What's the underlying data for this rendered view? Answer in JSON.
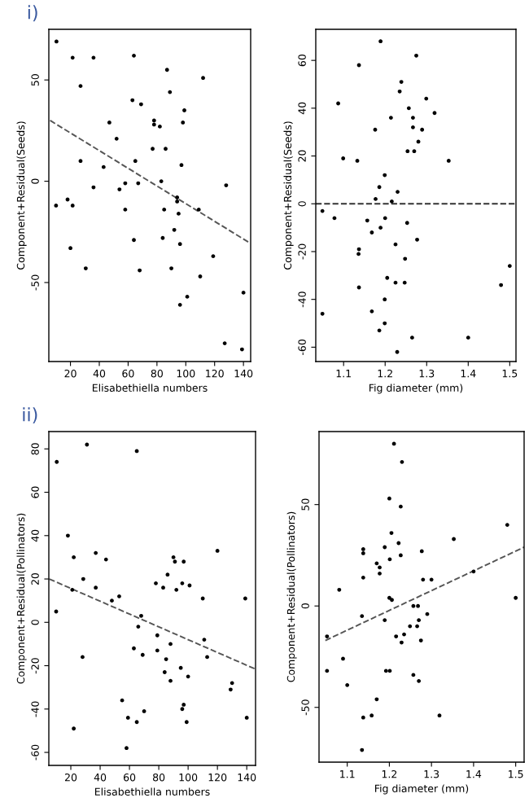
{
  "chart_data": [
    {
      "type": "scatter",
      "annotations": [
        "i)"
      ],
      "xlabel": "Elisabethiella numbers",
      "ylabel": "Component+Residual(Seeds)",
      "xlim": [
        5,
        145
      ],
      "ylim": [
        -89,
        75
      ],
      "xticks": [
        20,
        40,
        60,
        80,
        100,
        120,
        140
      ],
      "yticks": [
        -50,
        0,
        50
      ],
      "marker": "circle",
      "grid": false,
      "legend": false,
      "series": [
        {
          "color": "#000000",
          "x": [
            10.3,
            21.5,
            36,
            64,
            87,
            112,
            27,
            89,
            63,
            69,
            99,
            47,
            78,
            78,
            82,
            98,
            52,
            77,
            86,
            27,
            65,
            43,
            97,
            83,
            58,
            67,
            36,
            54,
            128,
            10,
            18,
            21.5,
            58,
            85,
            94,
            94,
            95,
            109,
            92,
            64,
            84,
            96,
            119,
            20,
            30.6,
            68,
            90,
            110,
            101,
            96,
            140,
            127,
            139
          ],
          "values": [
            69,
            61,
            61,
            62,
            55,
            51,
            47,
            44,
            40,
            38,
            35,
            29,
            30,
            28,
            27,
            29,
            21,
            16,
            16,
            10,
            10,
            7,
            8,
            0,
            -1,
            -1,
            -3,
            -4,
            -2,
            -12,
            -9,
            -12,
            -14,
            -14,
            -8,
            -10,
            -16,
            -14,
            -24,
            -29,
            -28,
            -31,
            -37,
            -33,
            -43,
            -44,
            -43,
            -47,
            -57,
            -61,
            -55,
            -80,
            -83
          ]
        },
        {
          "type": "line",
          "line_style": "dashed",
          "marker": "none",
          "color": "#555555",
          "x": [
            5.9,
            143.4
          ],
          "values": [
            30,
            -30
          ]
        }
      ]
    },
    {
      "type": "scatter",
      "xlabel": "Fig diameter (mm)",
      "ylabel": "Component+Residual(Seeds)",
      "xlim": [
        1.033,
        1.515
      ],
      "ylim": [
        -66,
        73
      ],
      "xticks": [
        1.1,
        1.2,
        1.3,
        1.4,
        1.5
      ],
      "yticks": [
        -60,
        -40,
        -20,
        0,
        20,
        40,
        60
      ],
      "marker": "circle",
      "grid": false,
      "legend": false,
      "series": [
        {
          "color": "#000000",
          "x": [
            1.189,
            1.275,
            1.137,
            1.239,
            1.235,
            1.087,
            1.299,
            1.257,
            1.319,
            1.214,
            1.267,
            1.267,
            1.176,
            1.289,
            1.28,
            1.254,
            1.27,
            1.099,
            1.133,
            1.353,
            1.199,
            1.186,
            1.23,
            1.177,
            1.216,
            1.049,
            1.078,
            1.157,
            1.2,
            1.168,
            1.189,
            1.253,
            1.277,
            1.225,
            1.137,
            1.136,
            1.248,
            1.5,
            1.205,
            1.247,
            1.225,
            1.479,
            1.137,
            1.199,
            1.049,
            1.168,
            1.199,
            1.186,
            1.265,
            1.4,
            1.229
          ],
          "values": [
            68,
            62,
            58,
            51,
            47,
            42,
            44,
            40,
            38,
            36,
            36,
            32,
            31,
            31,
            26,
            22,
            22,
            19,
            18,
            18,
            12,
            7,
            5,
            2,
            1,
            -3,
            -6,
            -7,
            -6,
            -12,
            -10,
            -8,
            -15,
            -17,
            -19,
            -21,
            -23,
            -26,
            -31,
            -33,
            -33,
            -34,
            -35,
            -40,
            -46,
            -45,
            -50,
            -53,
            -56,
            -56,
            -62
          ]
        },
        {
          "type": "line",
          "line_style": "dashed",
          "marker": "none",
          "color": "#333333",
          "x": [
            1.033,
            1.515
          ],
          "values": [
            0,
            0
          ]
        }
      ]
    },
    {
      "type": "scatter",
      "annotations": [
        "ii)"
      ],
      "xlabel": "Elisabethiella numbers",
      "ylabel": "Component+Residual(Pollinators)",
      "xlim": [
        5,
        146
      ],
      "ylim": [
        -66,
        88
      ],
      "xticks": [
        20,
        40,
        60,
        80,
        100,
        120,
        140
      ],
      "yticks": [
        -60,
        -40,
        -20,
        0,
        20,
        40,
        60,
        80
      ],
      "marker": "circle",
      "grid": false,
      "legend": false,
      "series": [
        {
          "color": "#000000",
          "x": [
            31,
            10.4,
            65,
            18,
            22,
            37,
            44,
            28.5,
            21,
            37,
            10,
            48,
            53,
            68,
            66,
            78,
            83,
            86,
            90,
            91,
            97,
            92,
            96,
            101,
            120,
            110,
            139,
            79,
            88,
            63,
            79,
            69,
            85,
            111,
            113,
            28,
            95,
            84,
            100,
            88,
            130,
            129,
            55,
            97,
            96,
            59,
            65,
            70,
            99,
            140,
            22,
            58
          ],
          "values": [
            82,
            74,
            79,
            40,
            30,
            32,
            29,
            20,
            15,
            16,
            5,
            10,
            12,
            3,
            -2,
            18,
            16,
            22,
            30,
            28,
            28,
            15,
            18,
            17,
            33,
            11,
            11,
            -6,
            -10,
            -12,
            -13,
            -15,
            -17,
            -8,
            -16,
            -16,
            -21,
            -23,
            -25,
            -27,
            -28,
            -31,
            -36,
            -38,
            -40,
            -44,
            -46,
            -41,
            -46,
            -44,
            -49,
            -58
          ]
        },
        {
          "type": "line",
          "line_style": "dashed",
          "marker": "none",
          "color": "#555555",
          "x": [
            5.3,
            145.7
          ],
          "values": [
            20,
            -21.5
          ]
        }
      ]
    },
    {
      "type": "scatter",
      "xlabel": "Fig diameter (mm)",
      "ylabel": "Component+Residual(Pollinators)",
      "xlim": [
        1.033,
        1.52
      ],
      "ylim": [
        -77,
        86
      ],
      "xticks": [
        1.1,
        1.2,
        1.3,
        1.4,
        1.5
      ],
      "yticks": [
        -50,
        0,
        50
      ],
      "marker": "circle",
      "grid": false,
      "legend": false,
      "series": [
        {
          "color": "#000000",
          "x": [
            1.211,
            1.23,
            1.2,
            1.227,
            1.48,
            1.205,
            1.353,
            1.222,
            1.138,
            1.138,
            1.189,
            1.277,
            1.227,
            1.201,
            1.17,
            1.177,
            1.177,
            1.138,
            1.28,
            1.3,
            1.4,
            1.081,
            1.2,
            1.206,
            1.5,
            1.257,
            1.268,
            1.135,
            1.29,
            1.189,
            1.191,
            1.27,
            1.249,
            1.266,
            1.235,
            1.216,
            1.275,
            1.229,
            1.052,
            1.09,
            1.052,
            1.192,
            1.201,
            1.257,
            1.27,
            1.1,
            1.17,
            1.158,
            1.138,
            1.319,
            1.135
          ],
          "values": [
            80,
            71,
            53,
            49,
            40,
            36,
            33,
            31,
            28,
            26,
            29,
            27,
            25,
            23,
            21,
            19,
            16,
            14,
            13,
            13,
            17,
            8,
            4,
            3,
            4,
            0,
            0,
            -5,
            -4,
            -7,
            null,
            -7,
            -10,
            -10,
            -14,
            -15,
            -17,
            -18,
            -15,
            -26,
            -32,
            -32,
            -32,
            -34,
            -37,
            -39,
            -46,
            -54,
            -55,
            -54,
            -71
          ]
        },
        {
          "type": "line",
          "line_style": "dashed",
          "marker": "none",
          "color": "#555555",
          "x": [
            1.048,
            1.52
          ],
          "values": [
            -17,
            29
          ]
        }
      ]
    }
  ]
}
